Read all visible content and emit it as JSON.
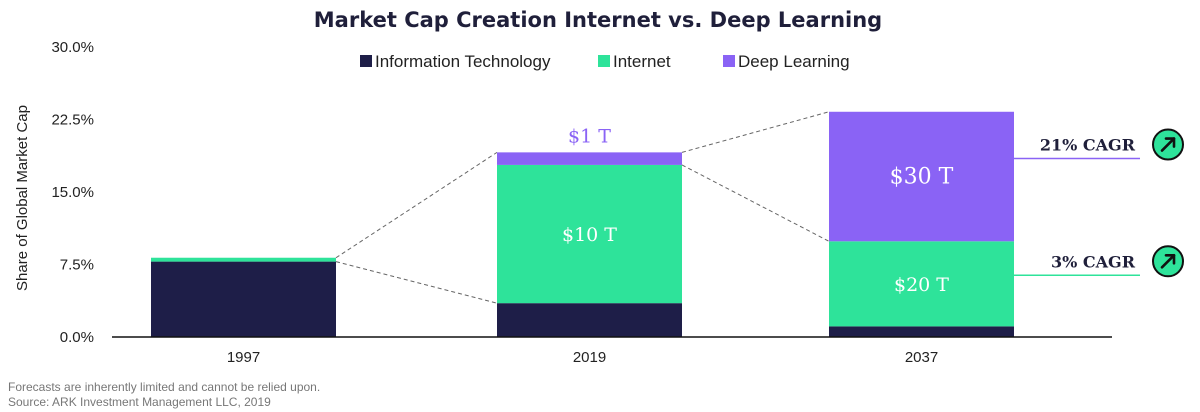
{
  "colors": {
    "info_tech": "#1e1e48",
    "internet": "#2ee39a",
    "deep_learning": "#8a63f5",
    "connector": "#666666",
    "cagr_top_line": "#8a63f5",
    "cagr_bottom_line": "#2ee39a",
    "badge": "#2ee39a"
  },
  "chart_data": {
    "type": "bar",
    "stacked": true,
    "title": "Market Cap Creation Internet vs. Deep Learning",
    "ylabel": "Share of Global Market Cap",
    "xlabel": "",
    "ylim": [
      0,
      30
    ],
    "yticks": [
      "0.0%",
      "7.5%",
      "15.0%",
      "22.5%",
      "30.0%"
    ],
    "ytick_values": [
      0,
      7.5,
      15,
      22.5,
      30
    ],
    "categories": [
      "1997",
      "2019",
      "2037"
    ],
    "series": [
      {
        "name": "Information Technology",
        "values": [
          7.8,
          3.5,
          1.1
        ]
      },
      {
        "name": "Internet",
        "values": [
          0.4,
          14.3,
          8.8
        ]
      },
      {
        "name": "Deep Learning",
        "values": [
          0,
          1.3,
          13.4
        ]
      }
    ],
    "legend_position": "top-center",
    "grid": false,
    "annotations": {
      "bar_labels": [
        {
          "category": "2019",
          "series": "Internet",
          "text": "$10 T"
        },
        {
          "category": "2019",
          "series": "Deep Learning",
          "text": "$1 T",
          "position": "above"
        },
        {
          "category": "2037",
          "series": "Deep Learning",
          "text": "$30 T"
        },
        {
          "category": "2037",
          "series": "Internet",
          "text": "$20 T"
        }
      ],
      "cagr": [
        {
          "text": "21% CAGR",
          "series": "Deep Learning",
          "icon": "arrow-up-right-icon"
        },
        {
          "text": "3% CAGR",
          "series": "Internet",
          "icon": "arrow-up-right-icon"
        }
      ]
    }
  },
  "footer": {
    "line1": "Forecasts are inherently limited and cannot be relied upon.",
    "line2": "Source: ARK Investment Management LLC, 2019"
  }
}
